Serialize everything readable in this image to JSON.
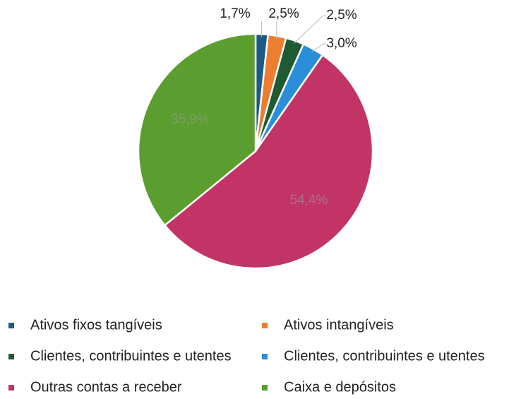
{
  "chart_data": {
    "type": "pie",
    "categories": [
      "Ativos fixos tangíveis",
      "Ativos intangíveis",
      "Clientes, contribuintes e utentes",
      "Clientes, contribuintes e utentes",
      "Outras contas a receber",
      "Caixa e depósitos"
    ],
    "values": [
      1.7,
      2.5,
      2.5,
      3.0,
      54.4,
      35.9
    ],
    "value_labels": [
      "1,7%",
      "2,5%",
      "2,5%",
      "3,0%",
      "54,4%",
      "35,9%"
    ],
    "colors": [
      "#1d5a85",
      "#ed7d31",
      "#1e5a32",
      "#2a8fd8",
      "#c23466",
      "#5b9e30"
    ],
    "legend": "bottom"
  }
}
